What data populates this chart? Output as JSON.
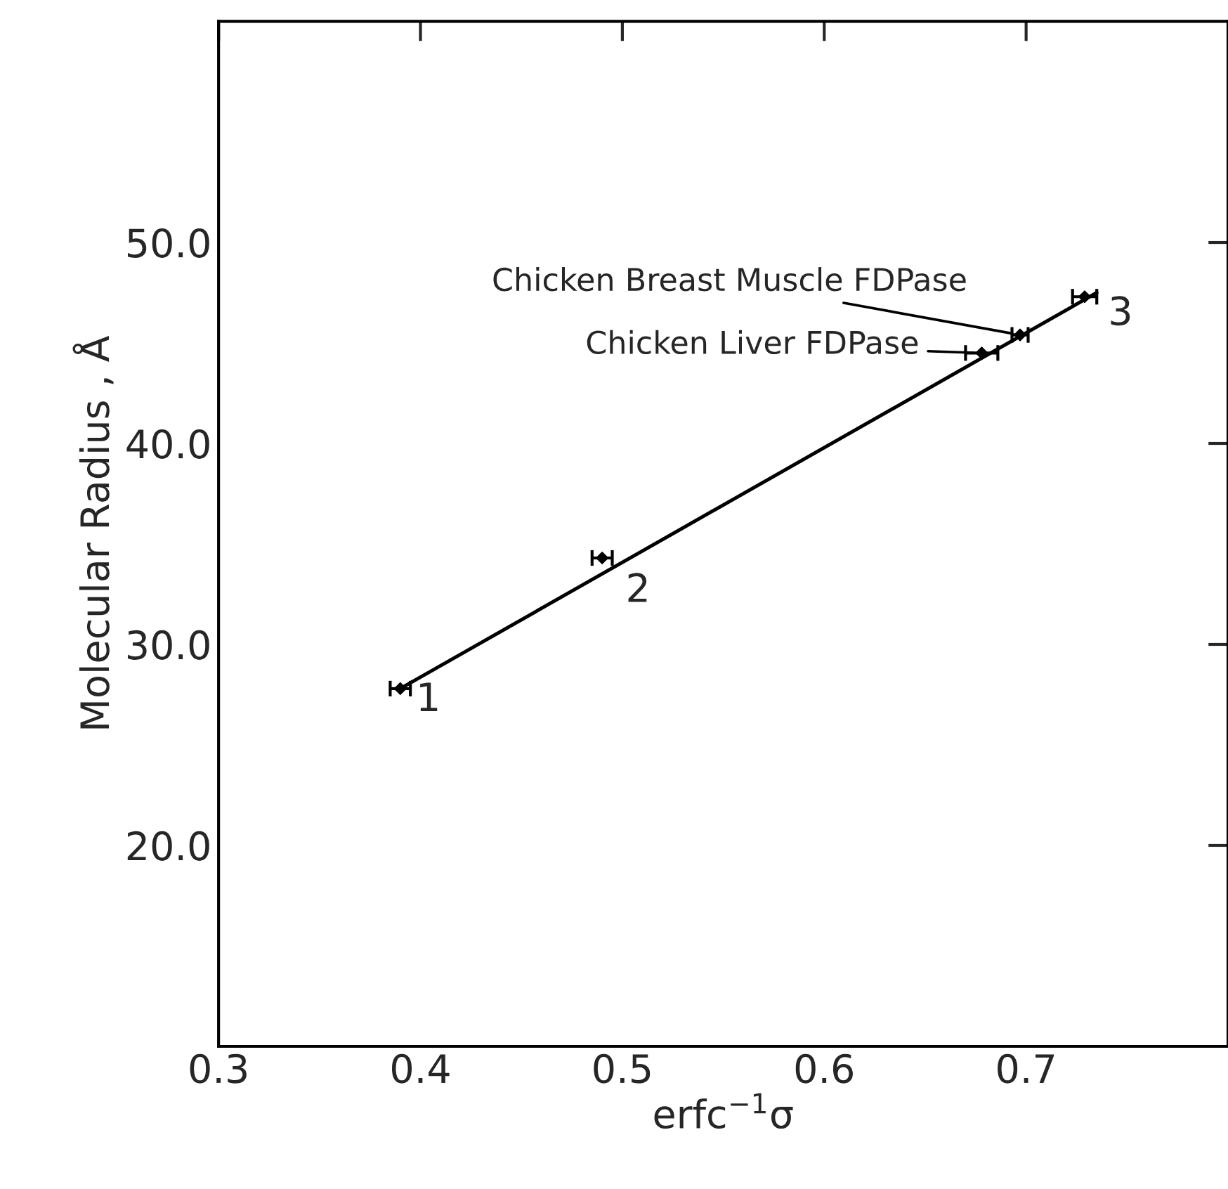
{
  "chart_data": {
    "type": "scatter",
    "xlabel": "erfc$^{−1}$σ",
    "ylabel": "Molecular Radius , Å",
    "xlim": [
      0.3,
      0.8
    ],
    "ylim": [
      10,
      61
    ],
    "xticks": [
      0.3,
      0.4,
      0.5,
      0.6,
      0.7
    ],
    "yticks": [
      {
        "value": 20,
        "label": "20.0"
      },
      {
        "value": 30,
        "label": "30.0"
      },
      {
        "value": 40,
        "label": "40.0"
      },
      {
        "value": 50,
        "label": "50.0"
      }
    ],
    "grid": false,
    "legend": false,
    "series": [
      {
        "color": "#000000",
        "marker": "diamond",
        "x": [
          0.39,
          0.49,
          0.678,
          0.697,
          0.729
        ],
        "values": [
          27.8,
          34.3,
          44.5,
          45.4,
          47.3
        ],
        "xerrors": [
          0.005,
          0.005,
          0.008,
          0.004,
          0.006
        ]
      },
      {
        "type": "line",
        "color": "#000000",
        "line_style": "solid",
        "marker": "none",
        "x": [
          0.39,
          0.735
        ],
        "values": [
          27.8,
          47.5
        ]
      }
    ],
    "annotations": [
      {
        "text": "1",
        "x": 0.39,
        "y": 27.8
      },
      {
        "text": "2",
        "x": 0.49,
        "y": 34.3
      },
      {
        "text": "3",
        "x": 0.729,
        "y": 47.3
      },
      {
        "text": "Chicken Liver FDPase",
        "x": 0.678,
        "y": 44.5
      },
      {
        "text": "Chicken Breast Muscle FDPase",
        "x": 0.697,
        "y": 45.4
      }
    ]
  }
}
